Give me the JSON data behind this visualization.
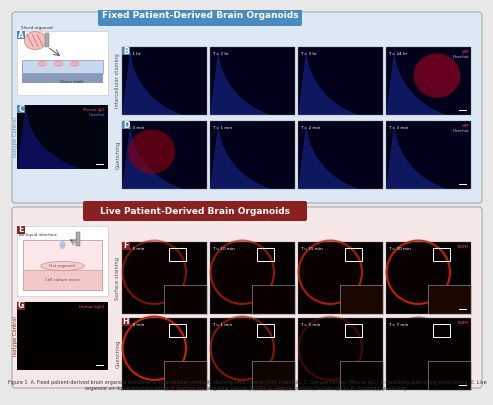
{
  "title_top": "Fixed Patient-Derived Brain Organoids",
  "title_top_bg": "#4a8bbf",
  "title_bottom": "Live Patient-Derived Brain Organoids",
  "title_bottom_bg": "#8b2020",
  "label_bg_top": "#4a8bbf",
  "label_bg_bottom": "#8b2020",
  "rotated_label_B": "Intercellular staining",
  "rotated_label_D": "Quenching",
  "rotated_label_F": "Surface staining",
  "rotated_label_H": "Quenching",
  "side_label_C": "Isotype Control",
  "side_label_G": "Isotype Control",
  "B_times": [
    "T = 1 hr",
    "T = 2 hr",
    "T = 3 hr",
    "T = 24 hr"
  ],
  "D_times": [
    "T = 0 min",
    "T = 1 min",
    "T = 2 min",
    "T = 3 min"
  ],
  "F_times": [
    "T = 5 min",
    "T = 10 min",
    "T = 15 min",
    "T = 30 min"
  ],
  "H_times": [
    "T = 0 min",
    "T = 1 min",
    "T = 5 min",
    "T = 7 min"
  ],
  "B_annotation_red": "VIM",
  "B_annotation_blue": "Hoechst",
  "D_annotation_red": "VIM",
  "D_annotation_blue": "Hoechst",
  "F_annotation": "EGFR",
  "H_annotation": "EGFR",
  "C_annotation_red": "Mouse IgG",
  "C_annotation_blue": "Hoechst",
  "G_annotation": "Human IgG1",
  "top_box_fill": "#dce9f5",
  "bottom_box_fill": "#f7e8e8",
  "top_box_edge": "#aaaaaa",
  "bottom_box_edge": "#aaaaaa",
  "caption_text": "Figure 1  A. Fixed patient-derived brain organoid workflow. B. Intercellular antibody staining time course (VIM, Hoechst). C. Isotype control (Mouse IgG). D. Antibody quenching time course. E. Live organoid air-liquid interface setup. F. Surface staining time course (EGFR). G. Isotype control (Human IgG1). H. Antibody quenching."
}
